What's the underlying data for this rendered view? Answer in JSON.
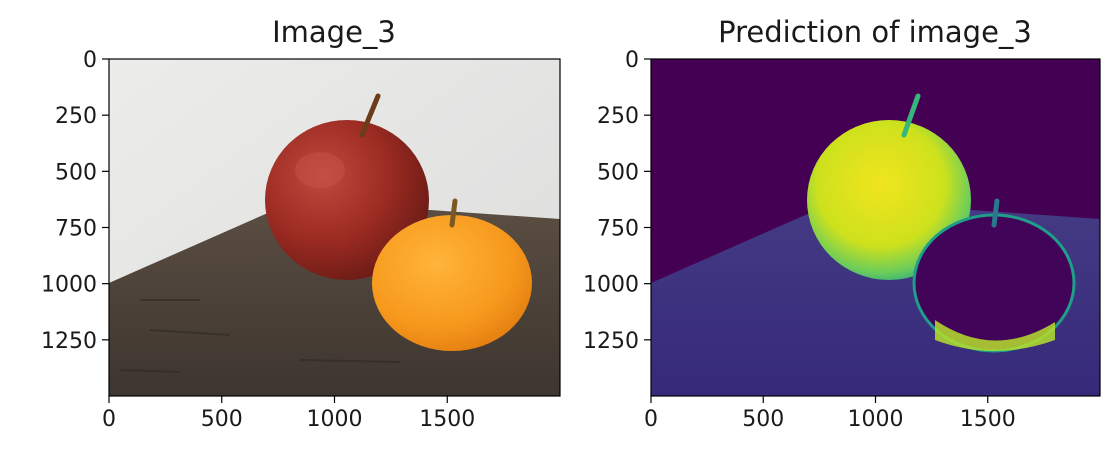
{
  "chart_data": [
    {
      "type": "image",
      "title": "Image_3",
      "x_ticks": [
        "0",
        "500",
        "1000",
        "1500"
      ],
      "y_ticks": [
        "0",
        "250",
        "500",
        "750",
        "1000",
        "1250"
      ],
      "x_tick_values": [
        0,
        500,
        1000,
        1500
      ],
      "y_tick_values": [
        0,
        250,
        500,
        750,
        1000,
        1250
      ],
      "xlim": [
        0,
        2000
      ],
      "ylim": [
        1500,
        0
      ],
      "content": "photo",
      "colors": {
        "wall": "#e4e4e4",
        "table": "#4b423b",
        "apple": "#9c2b22",
        "orange": "#f6981c"
      }
    },
    {
      "type": "image",
      "title": "Prediction of image_3",
      "x_ticks": [
        "0",
        "500",
        "1000",
        "1500"
      ],
      "y_ticks": [
        "0",
        "250",
        "500",
        "750",
        "1000",
        "1250"
      ],
      "x_tick_values": [
        0,
        500,
        1000,
        1500
      ],
      "y_tick_values": [
        0,
        250,
        500,
        750,
        1000,
        1250
      ],
      "xlim": [
        0,
        2000
      ],
      "ylim": [
        1500,
        0
      ],
      "content": "heatmap",
      "colormap": "viridis",
      "colors": {
        "background": "#440154",
        "table": "#3b3280",
        "apple": "#dfe318",
        "orange": "#400257",
        "edge": "#1fa187"
      }
    }
  ]
}
